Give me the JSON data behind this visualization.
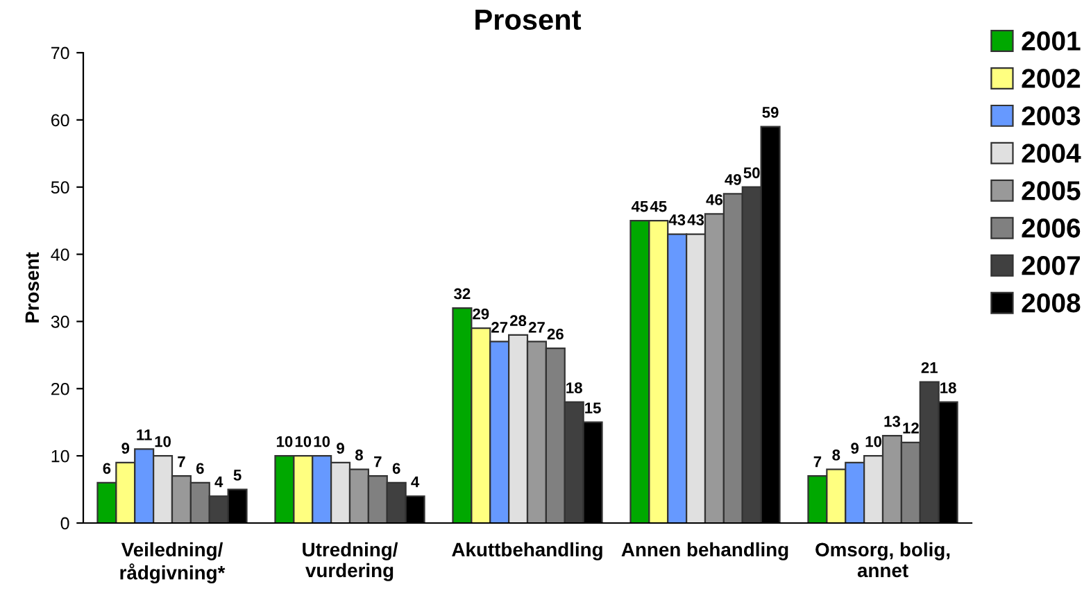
{
  "chart_data": {
    "type": "bar",
    "title": "Prosent",
    "ylabel": "Prosent",
    "categories": [
      "Veiledning/\nrådgivning*",
      "Utredning/\nvurdering",
      "Akuttbehandling",
      "Annen behandling",
      "Omsorg, bolig,\nannet"
    ],
    "series": [
      {
        "name": "2001",
        "color": "#00a800",
        "values": [
          6,
          10,
          32,
          45,
          7
        ]
      },
      {
        "name": "2002",
        "color": "#ffff80",
        "values": [
          9,
          10,
          29,
          45,
          8
        ]
      },
      {
        "name": "2003",
        "color": "#6699ff",
        "values": [
          11,
          10,
          27,
          43,
          9
        ]
      },
      {
        "name": "2004",
        "color": "#e0e0e0",
        "values": [
          10,
          9,
          28,
          43,
          10
        ]
      },
      {
        "name": "2005",
        "color": "#999999",
        "values": [
          7,
          8,
          27,
          46,
          13
        ]
      },
      {
        "name": "2006",
        "color": "#808080",
        "values": [
          6,
          7,
          26,
          49,
          12
        ]
      },
      {
        "name": "2007",
        "color": "#404040",
        "values": [
          4,
          6,
          18,
          50,
          21
        ]
      },
      {
        "name": "2008",
        "color": "#000000",
        "values": [
          5,
          4,
          15,
          59,
          18
        ]
      }
    ],
    "ylim": [
      0,
      70
    ],
    "yticks": [
      0,
      10,
      20,
      30,
      40,
      50,
      60,
      70
    ],
    "grid": false,
    "legend": "right",
    "data_labels": true
  }
}
